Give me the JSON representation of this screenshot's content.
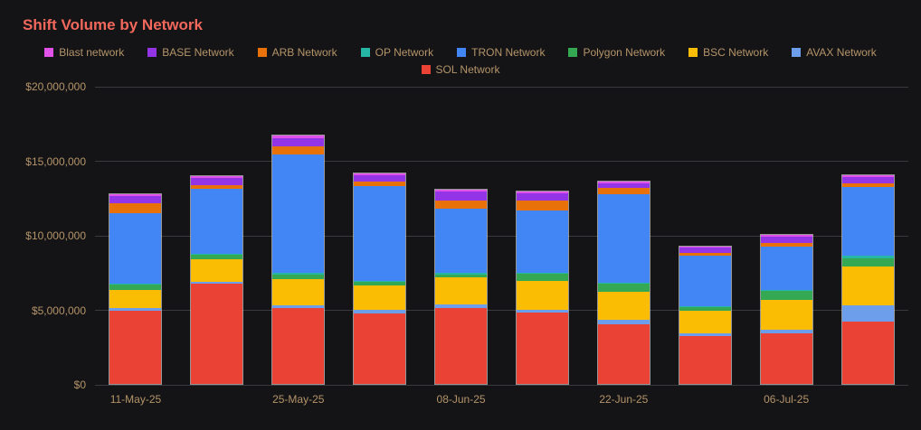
{
  "theme": {
    "background": "#141416",
    "title_color": "#f2685c",
    "text_color": "#b49469",
    "grid_color": "#3a3a3e",
    "bar_border": "#ffffff8c"
  },
  "chart_data": {
    "type": "bar",
    "stacked": true,
    "title": "Shift Volume by Network",
    "xlabel": "",
    "ylabel": "",
    "ylim": [
      0,
      20000000
    ],
    "grid": true,
    "legend_position": "top",
    "y_ticks": [
      {
        "value": 0,
        "label": "$0"
      },
      {
        "value": 5000000,
        "label": "$5,000,000"
      },
      {
        "value": 10000000,
        "label": "$10,000,000"
      },
      {
        "value": 15000000,
        "label": "$15,000,000"
      },
      {
        "value": 20000000,
        "label": "$20,000,000"
      }
    ],
    "categories": [
      "11-May-25",
      "",
      "25-May-25",
      "",
      "08-Jun-25",
      "",
      "22-Jun-25",
      "",
      "06-Jul-25",
      ""
    ],
    "legend_rows": [
      [
        {
          "label": "Blast network",
          "color": "#e052ea"
        },
        {
          "label": "BASE Network",
          "color": "#9334e6"
        },
        {
          "label": "ARB Network",
          "color": "#e8710a"
        },
        {
          "label": "OP Network",
          "color": "#26b6a5"
        },
        {
          "label": "TRON Network",
          "color": "#4285f4"
        },
        {
          "label": "Polygon Network",
          "color": "#34a853"
        },
        {
          "label": "BSC Network",
          "color": "#fbbc04"
        },
        {
          "label": "AVAX Network",
          "color": "#6d9eeb"
        }
      ],
      [
        {
          "label": "SOL Network",
          "color": "#ea4335"
        }
      ]
    ],
    "series": [
      {
        "name": "SOL Network",
        "color": "#ea4335",
        "values": [
          4900000,
          6700000,
          5100000,
          4700000,
          5100000,
          4800000,
          4000000,
          3200000,
          3400000,
          4200000
        ]
      },
      {
        "name": "AVAX Network",
        "color": "#6d9eeb",
        "values": [
          200000,
          150000,
          150000,
          250000,
          250000,
          200000,
          300000,
          200000,
          250000,
          1100000
        ]
      },
      {
        "name": "BSC Network",
        "color": "#fbbc04",
        "values": [
          1200000,
          1500000,
          1800000,
          1650000,
          1800000,
          1900000,
          1900000,
          1500000,
          2000000,
          2600000
        ]
      },
      {
        "name": "Polygon Network",
        "color": "#34a853",
        "values": [
          350000,
          300000,
          300000,
          250000,
          200000,
          500000,
          500000,
          250000,
          600000,
          500000
        ]
      },
      {
        "name": "OP Network",
        "color": "#26b6a5",
        "values": [
          100000,
          80000,
          120000,
          80000,
          80000,
          80000,
          80000,
          80000,
          80000,
          200000
        ]
      },
      {
        "name": "TRON Network",
        "color": "#4285f4",
        "values": [
          4700000,
          4350000,
          7900000,
          6350000,
          4350000,
          4150000,
          5950000,
          3400000,
          2900000,
          4600000
        ]
      },
      {
        "name": "ARB Network",
        "color": "#e8710a",
        "values": [
          700000,
          250000,
          600000,
          300000,
          550000,
          700000,
          400000,
          150000,
          200000,
          250000
        ]
      },
      {
        "name": "BASE Network",
        "color": "#9334e6",
        "values": [
          450000,
          480000,
          500000,
          400000,
          600000,
          450000,
          350000,
          350000,
          450000,
          450000
        ]
      },
      {
        "name": "Blast network",
        "color": "#e052ea",
        "values": [
          150000,
          120000,
          180000,
          150000,
          120000,
          120000,
          120000,
          100000,
          150000,
          130000
        ]
      }
    ]
  }
}
